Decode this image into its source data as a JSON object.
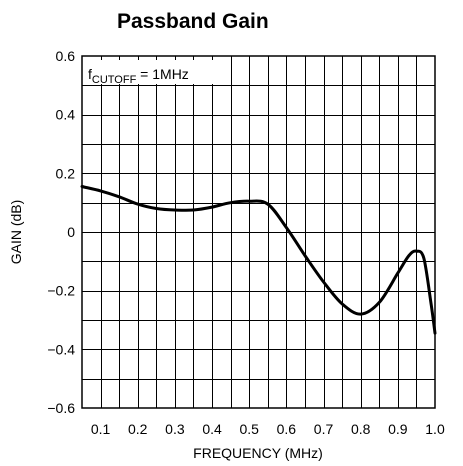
{
  "chart_data": {
    "type": "line",
    "title": "Passband Gain",
    "xlabel": "FREQUENCY (MHz)",
    "ylabel": "GAIN (dB)",
    "xlim": [
      0.05,
      1.0
    ],
    "ylim": [
      -0.6,
      0.6
    ],
    "x_ticks": [
      0.1,
      0.2,
      0.3,
      0.4,
      0.5,
      0.6,
      0.7,
      0.8,
      0.9,
      1.0
    ],
    "x_tick_labels": [
      "0.1",
      "0.2",
      "0.3",
      "0.4",
      "0.5",
      "0.6",
      "0.7",
      "0.8",
      "0.9",
      "1.0"
    ],
    "y_ticks": [
      -0.6,
      -0.4,
      -0.2,
      0,
      0.2,
      0.4,
      0.6
    ],
    "y_tick_labels": [
      "−0.6",
      "−0.4",
      "−0.2",
      "0",
      "0.2",
      "0.4",
      "0.6"
    ],
    "grid": true,
    "annotation": {
      "prefix": "f",
      "subscript": "CUTOFF",
      "suffix": " = 1MHz",
      "position": "top-left"
    },
    "series": [
      {
        "color": "#000000",
        "x": [
          0.05,
          0.1,
          0.15,
          0.2,
          0.25,
          0.3,
          0.35,
          0.4,
          0.45,
          0.5,
          0.55,
          0.6,
          0.65,
          0.7,
          0.75,
          0.8,
          0.85,
          0.9,
          0.93,
          0.95,
          0.97,
          0.99,
          1.0
        ],
        "y": [
          0.155,
          0.14,
          0.12,
          0.095,
          0.08,
          0.075,
          0.075,
          0.085,
          0.1,
          0.105,
          0.095,
          0.015,
          -0.08,
          -0.17,
          -0.245,
          -0.28,
          -0.24,
          -0.14,
          -0.08,
          -0.065,
          -0.09,
          -0.25,
          -0.345
        ]
      }
    ]
  }
}
